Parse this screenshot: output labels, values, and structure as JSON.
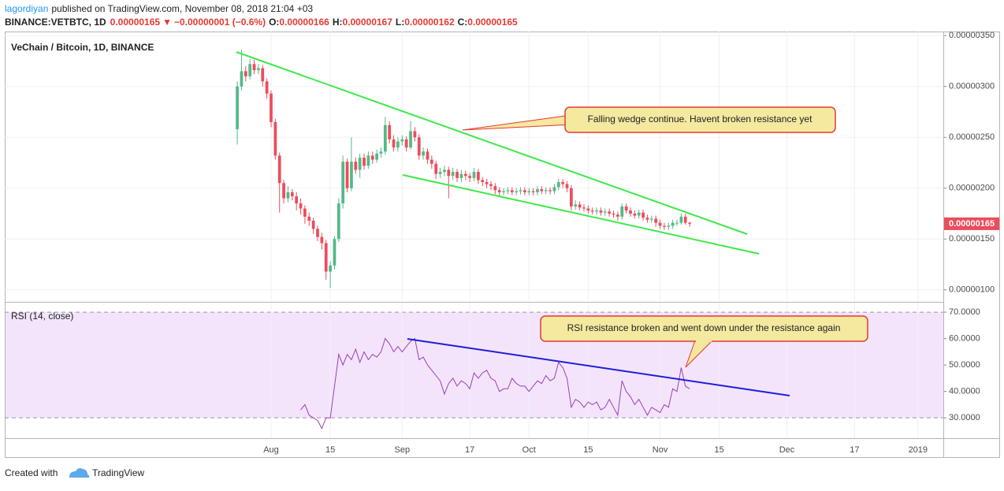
{
  "header": {
    "author": "lagordiyan",
    "published": "published on TradingView.com, November 08, 2018 21:04 +03",
    "symbol": "BINANCE:VETBTC, 1D",
    "last": "0.00000165",
    "arrow": "▼",
    "change": "−0.00000001 (−0.6%)",
    "ohlc": [
      {
        "label": "O:",
        "value": "0.00000166"
      },
      {
        "label": "H:",
        "value": "0.00000167"
      },
      {
        "label": "L:",
        "value": "0.00000162"
      },
      {
        "label": "C:",
        "value": "0.00000165"
      }
    ]
  },
  "footer": {
    "created": "Created with",
    "brand": "TradingView"
  },
  "chart_data": {
    "type": "candlestick",
    "title": "VeChain / Bitcoin, 1D, BINANCE",
    "up_color": "#53b987",
    "down_color": "#eb4d5c",
    "grid": true,
    "x": [
      "2018-07-24",
      "2018-07-25",
      "2018-07-26",
      "2018-07-27",
      "2018-07-28",
      "2018-07-29",
      "2018-07-30",
      "2018-07-31",
      "2018-08-01",
      "2018-08-02",
      "2018-08-03",
      "2018-08-04",
      "2018-08-05",
      "2018-08-06",
      "2018-08-07",
      "2018-08-08",
      "2018-08-09",
      "2018-08-10",
      "2018-08-11",
      "2018-08-12",
      "2018-08-13",
      "2018-08-14",
      "2018-08-15",
      "2018-08-16",
      "2018-08-17",
      "2018-08-18",
      "2018-08-19",
      "2018-08-20",
      "2018-08-21",
      "2018-08-22",
      "2018-08-23",
      "2018-08-24",
      "2018-08-25",
      "2018-08-26",
      "2018-08-27",
      "2018-08-28",
      "2018-08-29",
      "2018-08-30",
      "2018-08-31",
      "2018-09-01",
      "2018-09-02",
      "2018-09-03",
      "2018-09-04",
      "2018-09-05",
      "2018-09-06",
      "2018-09-07",
      "2018-09-08",
      "2018-09-09",
      "2018-09-10",
      "2018-09-11",
      "2018-09-12",
      "2018-09-13",
      "2018-09-14",
      "2018-09-15",
      "2018-09-16",
      "2018-09-17",
      "2018-09-18",
      "2018-09-19",
      "2018-09-20",
      "2018-09-21",
      "2018-09-22",
      "2018-09-23",
      "2018-09-24",
      "2018-09-25",
      "2018-09-26",
      "2018-09-27",
      "2018-09-28",
      "2018-09-29",
      "2018-09-30",
      "2018-10-01",
      "2018-10-02",
      "2018-10-03",
      "2018-10-04",
      "2018-10-05",
      "2018-10-06",
      "2018-10-07",
      "2018-10-08",
      "2018-10-09",
      "2018-10-10",
      "2018-10-11",
      "2018-10-12",
      "2018-10-13",
      "2018-10-14",
      "2018-10-15",
      "2018-10-16",
      "2018-10-17",
      "2018-10-18",
      "2018-10-19",
      "2018-10-20",
      "2018-10-21",
      "2018-10-22",
      "2018-10-23",
      "2018-10-24",
      "2018-10-25",
      "2018-10-26",
      "2018-10-27",
      "2018-10-28",
      "2018-10-29",
      "2018-10-30",
      "2018-10-31",
      "2018-11-01",
      "2018-11-02",
      "2018-11-03",
      "2018-11-04",
      "2018-11-05",
      "2018-11-06",
      "2018-11-07",
      "2018-11-08"
    ],
    "open": [
      2.58e-06,
      3e-06,
      3.15e-06,
      3.1e-06,
      3.22e-06,
      3.16e-06,
      3.18e-06,
      3.05e-06,
      2.93e-06,
      2.65e-06,
      2.32e-06,
      2.05e-06,
      1.9e-06,
      1.96e-06,
      1.92e-06,
      1.85e-06,
      1.8e-06,
      1.72e-06,
      1.68e-06,
      1.6e-06,
      1.52e-06,
      1.46e-06,
      1.18e-06,
      1.24e-06,
      1.5e-06,
      1.85e-06,
      2.26e-06,
      2e-06,
      2.26e-06,
      2.18e-06,
      2.3e-06,
      2.22e-06,
      2.32e-06,
      2.28e-06,
      2.34e-06,
      2.36e-06,
      2.62e-06,
      2.48e-06,
      2.4e-06,
      2.46e-06,
      2.48e-06,
      2.4e-06,
      2.56e-06,
      2.5e-06,
      2.32e-06,
      2.36e-06,
      2.28e-06,
      2.24e-06,
      2.14e-06,
      2.16e-06,
      2.18e-06,
      2.12e-06,
      2.16e-06,
      2.1e-06,
      2.14e-06,
      2.12e-06,
      2.1e-06,
      2.16e-06,
      2.08e-06,
      2.06e-06,
      2.04e-06,
      2.02e-06,
      1.98e-06,
      1.96e-06,
      1.97e-06,
      1.98e-06,
      1.96e-06,
      1.97e-06,
      1.98e-06,
      1.96e-06,
      1.97e-06,
      1.96e-06,
      1.99e-06,
      1.97e-06,
      1.98e-06,
      1.97e-06,
      2.01e-06,
      2.06e-06,
      2.04e-06,
      2e-06,
      1.82e-06,
      1.84e-06,
      1.81e-06,
      1.8e-06,
      1.78e-06,
      1.77e-06,
      1.78e-06,
      1.76e-06,
      1.77e-06,
      1.75e-06,
      1.74e-06,
      1.72e-06,
      1.82e-06,
      1.78e-06,
      1.75e-06,
      1.73e-06,
      1.76e-06,
      1.71e-06,
      1.69e-06,
      1.7e-06,
      1.66e-06,
      1.63e-06,
      1.62e-06,
      1.63e-06,
      1.66e-06,
      1.66e-06,
      1.72e-06,
      1.66e-06
    ],
    "high": [
      3.05e-06,
      3.36e-06,
      3.2e-06,
      3.27e-06,
      3.26e-06,
      3.22e-06,
      3.21e-06,
      3.08e-06,
      2.96e-06,
      2.68e-06,
      2.35e-06,
      2.08e-06,
      2.02e-06,
      1.99e-06,
      1.96e-06,
      1.9e-06,
      1.83e-06,
      1.76e-06,
      1.71e-06,
      1.63e-06,
      1.56e-06,
      1.49e-06,
      1.28e-06,
      1.53e-06,
      1.9e-06,
      2.32e-06,
      2.29e-06,
      2.5e-06,
      2.3e-06,
      2.34e-06,
      2.34e-06,
      2.36e-06,
      2.36e-06,
      2.38e-06,
      2.4e-06,
      2.7e-06,
      2.66e-06,
      2.52e-06,
      2.5e-06,
      2.52e-06,
      2.51e-06,
      2.66e-06,
      2.6e-06,
      2.53e-06,
      2.4e-06,
      2.39e-06,
      2.32e-06,
      2.27e-06,
      2.2e-06,
      2.22e-06,
      2.21e-06,
      2.2e-06,
      2.19e-06,
      2.18e-06,
      2.17e-06,
      2.15e-06,
      2.2e-06,
      2.19e-06,
      2.11e-06,
      2.09e-06,
      2.07e-06,
      2.05e-06,
      2.01e-06,
      2e-06,
      2.01e-06,
      2.01e-06,
      2e-06,
      2.01e-06,
      2.01e-06,
      2e-06,
      2e-06,
      2.02e-06,
      2.02e-06,
      2.01e-06,
      2.01e-06,
      2.04e-06,
      2.09e-06,
      2.09e-06,
      2.07e-06,
      2.03e-06,
      1.88e-06,
      1.87e-06,
      1.84e-06,
      1.83e-06,
      1.81e-06,
      1.81e-06,
      1.81e-06,
      1.8e-06,
      1.8e-06,
      1.78e-06,
      1.77e-06,
      1.85e-06,
      1.85e-06,
      1.81e-06,
      1.78e-06,
      1.79e-06,
      1.79e-06,
      1.74e-06,
      1.73e-06,
      1.73e-06,
      1.69e-06,
      1.66e-06,
      1.66e-06,
      1.69e-06,
      1.69e-06,
      1.75e-06,
      1.75e-06,
      1.67e-06
    ],
    "low": [
      2.43e-06,
      2.96e-06,
      3.05e-06,
      3.07e-06,
      3.12e-06,
      3.12e-06,
      3e-06,
      2.88e-06,
      2.6e-06,
      2.28e-06,
      1.76e-06,
      1.85e-06,
      1.86e-06,
      1.88e-06,
      1.78e-06,
      1.74e-06,
      1.65e-06,
      1.63e-06,
      1.55e-06,
      1.48e-06,
      1.4e-06,
      1.1e-06,
      1.02e-06,
      1.2e-06,
      1.47e-06,
      1.8e-06,
      1.96e-06,
      1.97e-06,
      2.14e-06,
      2.1e-06,
      2.18e-06,
      2.19e-06,
      2.24e-06,
      2.25e-06,
      2.3e-06,
      2.33e-06,
      2.44e-06,
      2.36e-06,
      2.36e-06,
      2.42e-06,
      2.36e-06,
      2.38e-06,
      2.46e-06,
      2.28e-06,
      2.28e-06,
      2.24e-06,
      2.19e-06,
      2.09e-06,
      2.1e-06,
      2.12e-06,
      1.9e-06,
      2.08e-06,
      2.06e-06,
      2.06e-06,
      2.08e-06,
      2.06e-06,
      2.07e-06,
      2.04e-06,
      2.02e-06,
      2e-06,
      1.98e-06,
      1.94e-06,
      1.92e-06,
      1.93e-06,
      1.94e-06,
      1.93e-06,
      1.93e-06,
      1.94e-06,
      1.93e-06,
      1.93e-06,
      1.93e-06,
      1.93e-06,
      1.94e-06,
      1.94e-06,
      1.94e-06,
      1.94e-06,
      1.98e-06,
      2e-06,
      1.96e-06,
      1.78e-06,
      1.79e-06,
      1.78e-06,
      1.77e-06,
      1.75e-06,
      1.74e-06,
      1.74e-06,
      1.73e-06,
      1.73e-06,
      1.72e-06,
      1.71e-06,
      1.68e-06,
      1.69e-06,
      1.75e-06,
      1.72e-06,
      1.7e-06,
      1.7e-06,
      1.68e-06,
      1.66e-06,
      1.66e-06,
      1.62e-06,
      1.6e-06,
      1.59e-06,
      1.59e-06,
      1.6e-06,
      1.63e-06,
      1.64e-06,
      1.64e-06,
      1.62e-06
    ],
    "close": [
      3e-06,
      3.15e-06,
      3.1e-06,
      3.22e-06,
      3.16e-06,
      3.18e-06,
      3.05e-06,
      2.93e-06,
      2.65e-06,
      2.32e-06,
      2.05e-06,
      1.9e-06,
      1.96e-06,
      1.92e-06,
      1.85e-06,
      1.8e-06,
      1.72e-06,
      1.68e-06,
      1.6e-06,
      1.52e-06,
      1.46e-06,
      1.18e-06,
      1.24e-06,
      1.5e-06,
      1.85e-06,
      2.26e-06,
      2e-06,
      2.26e-06,
      2.18e-06,
      2.3e-06,
      2.22e-06,
      2.32e-06,
      2.28e-06,
      2.34e-06,
      2.36e-06,
      2.62e-06,
      2.48e-06,
      2.4e-06,
      2.46e-06,
      2.48e-06,
      2.4e-06,
      2.56e-06,
      2.5e-06,
      2.32e-06,
      2.36e-06,
      2.28e-06,
      2.24e-06,
      2.14e-06,
      2.16e-06,
      2.18e-06,
      2.12e-06,
      2.16e-06,
      2.1e-06,
      2.14e-06,
      2.12e-06,
      2.1e-06,
      2.16e-06,
      2.08e-06,
      2.06e-06,
      2.04e-06,
      2.02e-06,
      1.98e-06,
      1.96e-06,
      1.97e-06,
      1.98e-06,
      1.96e-06,
      1.97e-06,
      1.98e-06,
      1.96e-06,
      1.97e-06,
      1.96e-06,
      1.99e-06,
      1.97e-06,
      1.98e-06,
      1.97e-06,
      2.01e-06,
      2.06e-06,
      2.04e-06,
      2e-06,
      1.82e-06,
      1.84e-06,
      1.81e-06,
      1.8e-06,
      1.78e-06,
      1.77e-06,
      1.78e-06,
      1.76e-06,
      1.77e-06,
      1.75e-06,
      1.74e-06,
      1.72e-06,
      1.82e-06,
      1.78e-06,
      1.75e-06,
      1.73e-06,
      1.76e-06,
      1.71e-06,
      1.69e-06,
      1.7e-06,
      1.66e-06,
      1.63e-06,
      1.62e-06,
      1.63e-06,
      1.66e-06,
      1.66e-06,
      1.72e-06,
      1.66e-06,
      1.65e-06
    ],
    "xlim": [
      "2018-05-30",
      "2019-01-07"
    ],
    "xticks": [
      {
        "value": "2018-08-01",
        "label": "Aug"
      },
      {
        "value": "2018-08-15",
        "label": "15"
      },
      {
        "value": "2018-09-01",
        "label": "Sep"
      },
      {
        "value": "2018-09-17",
        "label": "17"
      },
      {
        "value": "2018-10-01",
        "label": "Oct"
      },
      {
        "value": "2018-10-15",
        "label": "15"
      },
      {
        "value": "2018-11-01",
        "label": "Nov"
      },
      {
        "value": "2018-11-15",
        "label": "15"
      },
      {
        "value": "2018-12-01",
        "label": "Dec"
      },
      {
        "value": "2018-12-17",
        "label": "17"
      },
      {
        "value": "2019-01-01",
        "label": "2019"
      }
    ],
    "ylim": [
      8.9e-07,
      3.54e-06
    ],
    "yticks": [
      {
        "value": 1e-06,
        "label": "0.00000100"
      },
      {
        "value": 1.5e-06,
        "label": "0.00000150"
      },
      {
        "value": 2e-06,
        "label": "0.00000200"
      },
      {
        "value": 2.5e-06,
        "label": "0.00000250"
      },
      {
        "value": 3e-06,
        "label": "0.00000300"
      },
      {
        "value": 3.5e-06,
        "label": "0.00000350"
      }
    ],
    "last_price": {
      "value": 1.65e-06,
      "label": "0.00000165"
    },
    "annotations": [
      "Falling wedge continue. Havent broken resistance yet",
      "RSI resistance broken and went down under the resistance again"
    ],
    "rsi": {
      "title": "RSI (14, close)",
      "color": "#9c3fb8",
      "band": [
        30,
        70
      ],
      "band_color": "#f3e4fb",
      "ylim": [
        22.3,
        73.6
      ],
      "yticks": [
        {
          "value": 30,
          "label": "30.0000"
        },
        {
          "value": 40,
          "label": "40.0000"
        },
        {
          "value": 50,
          "label": "50.0000"
        },
        {
          "value": 60,
          "label": "60.0000"
        },
        {
          "value": 70,
          "label": "70.0000"
        }
      ],
      "values": [
        null,
        null,
        null,
        null,
        null,
        null,
        null,
        null,
        null,
        null,
        null,
        null,
        null,
        null,
        null,
        33,
        35,
        31,
        30,
        29,
        26,
        30,
        30,
        42,
        54,
        50,
        54,
        52,
        56,
        51,
        55,
        52,
        54,
        53,
        55,
        60,
        58,
        55,
        57,
        55,
        57,
        59,
        60,
        52,
        53,
        50,
        48,
        46,
        44,
        39,
        43,
        45,
        42,
        44,
        43,
        41,
        47,
        45,
        47,
        48,
        45,
        44,
        40,
        41,
        41,
        45,
        43,
        42,
        42,
        40,
        42,
        44,
        43,
        46,
        44,
        45,
        51,
        49,
        45,
        34,
        37,
        36,
        34,
        36,
        35,
        36,
        33,
        34,
        37,
        34,
        31,
        44,
        40,
        38,
        35,
        37,
        34,
        31,
        34,
        33,
        32,
        35,
        34,
        41,
        40,
        49,
        42,
        41
      ]
    }
  }
}
